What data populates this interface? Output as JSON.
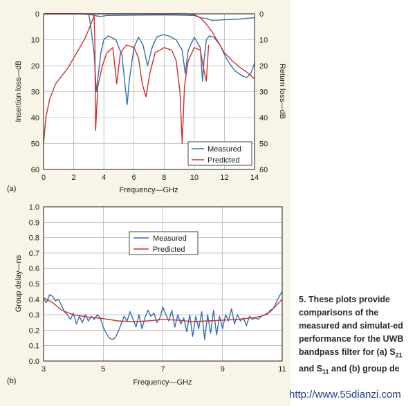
{
  "colors": {
    "measured": "#2f6fb0",
    "predicted": "#d42a2a",
    "panel_background": "#f8f4e6",
    "grid": "#9a9a9a"
  },
  "caption": {
    "number": "5.",
    "text_before": "These plots provide comparisons of the measured and simulat-ed performance for the UWB bandpass filter for (a) S",
    "sub1": "21",
    "text_mid": " and S",
    "sub2": "11",
    "text_after": " and (b) group de"
  },
  "watermark": "http://www.55dianzi.com",
  "chart_data": [
    {
      "panel_label": "(a)",
      "type": "line",
      "title": "",
      "xlabel": "Frequency—GHz",
      "ylabel": "Insertion loss—dB",
      "ylabel_right": "Return loss—dB",
      "xlim": [
        0,
        14
      ],
      "ylim": [
        0,
        60
      ],
      "y_inverted": true,
      "x_ticks": [
        "0",
        "2",
        "4",
        "6",
        "8",
        "10",
        "12",
        "14"
      ],
      "y_ticks": [
        "0",
        "10",
        "20",
        "30",
        "40",
        "50",
        "60"
      ],
      "y_ticks_right": [
        "0",
        "10",
        "20",
        "30",
        "40",
        "50",
        "60"
      ],
      "grid": true,
      "legend_position": "bottom-right",
      "series": [
        {
          "name": "Measured",
          "color_key": "measured",
          "x": [
            0,
            2.5,
            3.1,
            3.3,
            3.5,
            3.8,
            4.2,
            6,
            8,
            10,
            10.4,
            10.8,
            11.2,
            12,
            13,
            14
          ],
          "y": [
            0,
            0,
            0.3,
            0.5,
            0.8,
            1,
            0.6,
            0.5,
            0.4,
            0.6,
            1.5,
            1.8,
            2.5,
            2.3,
            2,
            1.5
          ]
        },
        {
          "name": "Measured",
          "color_key": "measured",
          "x": [
            3.0,
            3.2,
            3.35,
            3.5,
            3.8,
            4.0,
            4.3,
            4.8,
            5.2,
            5.4,
            5.55,
            5.7,
            6.0,
            6.3,
            6.6,
            6.9,
            7.2,
            7.5,
            7.9,
            8.3,
            8.8,
            9.2,
            9.4,
            9.6,
            10.0,
            10.4,
            10.55,
            10.65,
            10.8,
            11.0,
            11.3,
            11.7,
            12.2,
            12.7,
            13.2,
            13.5,
            13.75,
            14.0
          ],
          "y": [
            0,
            8,
            15,
            30,
            15,
            10,
            8.5,
            10,
            16,
            27,
            35,
            25,
            13,
            9,
            12,
            20,
            13,
            9,
            8,
            8.5,
            10,
            14,
            23,
            14,
            9,
            13,
            26,
            18,
            10,
            8.5,
            9,
            12,
            18,
            22,
            24,
            24.5,
            23,
            19
          ]
        },
        {
          "name": "Predicted",
          "color_key": "predicted",
          "x": [
            0,
            0.15,
            0.4,
            0.8,
            1.2,
            1.6,
            2.0,
            2.4,
            2.7,
            3.0,
            3.2,
            3.3,
            3.35,
            3.4,
            3.45
          ],
          "y": [
            50,
            40,
            33,
            27,
            24,
            21,
            17,
            13,
            10,
            6,
            3,
            1.5,
            0.5,
            10,
            45
          ]
        },
        {
          "name": "Predicted",
          "color_key": "predicted",
          "x": [
            3.45,
            3.6,
            3.9,
            4.2,
            4.6,
            4.85,
            5.1,
            5.5,
            6.0,
            6.3,
            6.55,
            6.8,
            7.05,
            7.4,
            8.0,
            8.5,
            8.8,
            9.05,
            9.2,
            9.35,
            9.6,
            10.0,
            10.4,
            10.65,
            10.8,
            10.95
          ],
          "y": [
            45,
            28,
            20,
            15,
            13,
            27,
            15,
            12,
            13,
            17,
            27,
            32,
            23,
            15,
            13,
            14,
            18,
            30,
            50,
            28,
            18,
            13,
            14,
            22,
            26,
            12
          ]
        },
        {
          "name": "Predicted",
          "color_key": "predicted",
          "x": [
            0,
            9.5,
            10.0,
            10.4,
            10.8,
            11.2,
            11.6,
            12.0,
            12.5,
            13.0,
            13.5,
            14.0
          ],
          "y": [
            0,
            0,
            0.3,
            1.5,
            4,
            7,
            11,
            15,
            18,
            20.5,
            22.5,
            25
          ]
        }
      ]
    },
    {
      "panel_label": "(b)",
      "type": "line",
      "title": "",
      "xlabel": "Frequency—GHz",
      "ylabel": "Group delay—ns",
      "xlim": [
        3,
        11
      ],
      "ylim": [
        0,
        1
      ],
      "x_ticks": [
        "3",
        "5",
        "7",
        "9",
        "11"
      ],
      "y_ticks": [
        "0.0",
        "0.1",
        "0.2",
        "0.3",
        "0.4",
        "0.5",
        "0.6",
        "0.7",
        "0.8",
        "0.9",
        "1.0"
      ],
      "grid": true,
      "legend_position": "center",
      "series": [
        {
          "name": "Measured",
          "color_key": "measured",
          "x": [
            3.0,
            3.1,
            3.2,
            3.3,
            3.4,
            3.5,
            3.6,
            3.7,
            3.8,
            3.9,
            4.0,
            4.1,
            4.2,
            4.3,
            4.4,
            4.5,
            4.6,
            4.7,
            4.8,
            4.9,
            5.0,
            5.1,
            5.2,
            5.3,
            5.4,
            5.5,
            5.6,
            5.7,
            5.8,
            5.9,
            6.0,
            6.1,
            6.2,
            6.3,
            6.4,
            6.5,
            6.6,
            6.7,
            6.8,
            6.9,
            7.0,
            7.1,
            7.2,
            7.3,
            7.4,
            7.5,
            7.6,
            7.7,
            7.8,
            7.9,
            8.0,
            8.1,
            8.2,
            8.3,
            8.4,
            8.5,
            8.6,
            8.7,
            8.8,
            8.9,
            9.0,
            9.1,
            9.2,
            9.3,
            9.4,
            9.5,
            9.6,
            9.7,
            9.8,
            9.9,
            10.0,
            10.1,
            10.2,
            10.3,
            10.4,
            10.5,
            10.6,
            10.7,
            10.8,
            10.9,
            11.0
          ],
          "y": [
            0.4,
            0.38,
            0.43,
            0.42,
            0.39,
            0.4,
            0.36,
            0.32,
            0.3,
            0.27,
            0.31,
            0.24,
            0.29,
            0.25,
            0.3,
            0.26,
            0.29,
            0.27,
            0.3,
            0.28,
            0.22,
            0.18,
            0.15,
            0.14,
            0.15,
            0.19,
            0.24,
            0.29,
            0.26,
            0.32,
            0.27,
            0.22,
            0.3,
            0.21,
            0.28,
            0.33,
            0.29,
            0.31,
            0.25,
            0.28,
            0.35,
            0.3,
            0.26,
            0.33,
            0.22,
            0.3,
            0.24,
            0.28,
            0.19,
            0.3,
            0.16,
            0.29,
            0.21,
            0.32,
            0.14,
            0.3,
            0.18,
            0.33,
            0.17,
            0.29,
            0.21,
            0.3,
            0.26,
            0.34,
            0.24,
            0.3,
            0.26,
            0.28,
            0.23,
            0.29,
            0.27,
            0.28,
            0.27,
            0.29,
            0.3,
            0.3,
            0.33,
            0.34,
            0.38,
            0.42,
            0.45
          ]
        },
        {
          "name": "Predicted",
          "color_key": "predicted",
          "x": [
            3.0,
            3.3,
            3.6,
            4.0,
            4.5,
            5.0,
            5.5,
            6.0,
            6.5,
            7.0,
            7.5,
            8.0,
            8.5,
            9.0,
            9.5,
            10.0,
            10.3,
            10.6,
            10.8,
            11.0
          ],
          "y": [
            0.41,
            0.38,
            0.33,
            0.3,
            0.285,
            0.275,
            0.26,
            0.255,
            0.26,
            0.27,
            0.265,
            0.255,
            0.26,
            0.265,
            0.27,
            0.28,
            0.29,
            0.32,
            0.36,
            0.4
          ]
        }
      ]
    }
  ]
}
